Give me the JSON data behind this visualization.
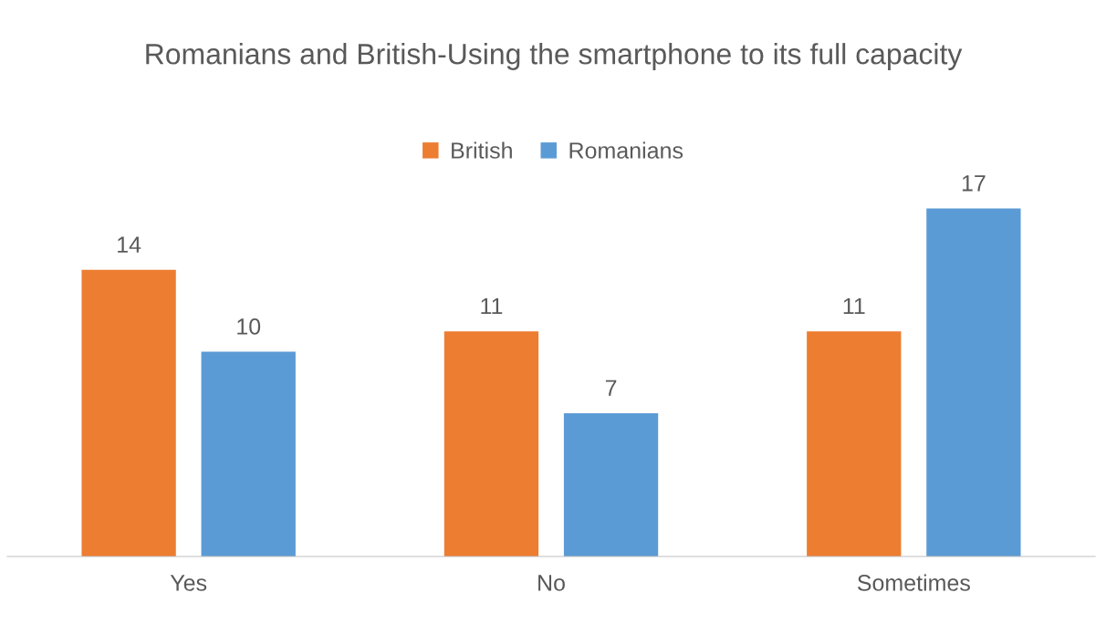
{
  "chart_data": {
    "type": "bar",
    "title": "Romanians and British-Using the smartphone to its full capacity",
    "categories": [
      "Yes",
      "No",
      "Sometimes"
    ],
    "series": [
      {
        "name": "British",
        "color": "#ed7d31",
        "values": [
          14,
          11,
          11
        ]
      },
      {
        "name": "Romanians",
        "color": "#5b9bd5",
        "values": [
          10,
          7,
          17
        ]
      }
    ],
    "data_labels": true,
    "legend": "top",
    "grid": false,
    "tick_labels": "x"
  }
}
